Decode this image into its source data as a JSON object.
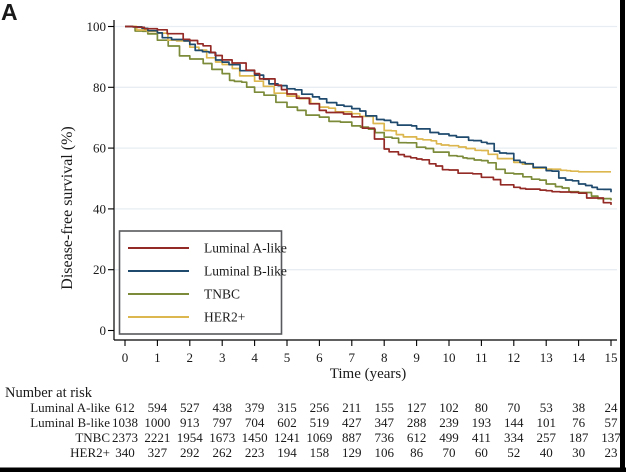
{
  "panel_label": "A",
  "chart_data": {
    "type": "line",
    "subtype": "kaplan-meier-step",
    "xlabel": "Time (years)",
    "ylabel": "Disease-free survival (%)",
    "x_ticks": [
      0,
      1,
      2,
      3,
      4,
      5,
      6,
      7,
      8,
      9,
      10,
      11,
      12,
      13,
      14,
      15
    ],
    "y_ticks": [
      0,
      20,
      40,
      60,
      80,
      100
    ],
    "xlim": [
      0,
      15
    ],
    "ylim": [
      0,
      100
    ],
    "grid": "horizontal",
    "legend_position": "inside-bottom-left",
    "series": [
      {
        "name": "Luminal A-like",
        "color": "#942a25",
        "x": [
          0,
          1,
          2,
          3,
          4,
          5,
          6,
          7,
          8,
          9,
          10,
          11,
          12,
          13,
          14,
          15
        ],
        "values": [
          100,
          98.9,
          95.4,
          89.0,
          84.5,
          77.8,
          72.4,
          70.3,
          59.7,
          56.4,
          52.8,
          50.4,
          47.1,
          46.0,
          45.2,
          41.3
        ]
      },
      {
        "name": "Luminal B-like",
        "color": "#1f4a6d",
        "x": [
          0,
          1,
          2,
          3,
          4,
          5,
          6,
          7,
          8,
          9,
          10,
          11,
          12,
          13,
          14,
          15
        ],
        "values": [
          100,
          97.9,
          94.1,
          88.3,
          84.0,
          79.5,
          76.2,
          73.0,
          69.1,
          66.3,
          64.1,
          61.9,
          56.0,
          52.6,
          48.2,
          45.5
        ]
      },
      {
        "name": "TNBC",
        "color": "#7b8b39",
        "x": [
          0,
          1,
          2,
          3,
          4,
          5,
          6,
          7,
          8,
          9,
          10,
          11,
          12,
          13,
          14,
          15
        ],
        "values": [
          100,
          95.5,
          89.3,
          84.5,
          78.4,
          73.5,
          70.2,
          67.3,
          63.6,
          60.3,
          57.5,
          55.9,
          51.5,
          48.2,
          45.4,
          42.8
        ]
      },
      {
        "name": "HER2+",
        "color": "#dcb64e",
        "x": [
          0,
          1,
          2,
          3,
          4,
          5,
          6,
          7,
          8,
          9,
          10,
          11,
          12,
          13,
          14,
          15
        ],
        "values": [
          100,
          97.8,
          93.2,
          87.5,
          82.0,
          77.1,
          73.5,
          71.3,
          65.8,
          63.0,
          60.8,
          59.2,
          55.3,
          53.1,
          52.2,
          52.2
        ]
      }
    ]
  },
  "risk_table": {
    "title": "Number at risk",
    "time_points": [
      0,
      1,
      2,
      3,
      4,
      5,
      6,
      7,
      8,
      9,
      10,
      11,
      12,
      13,
      14,
      15
    ],
    "rows": [
      {
        "label": "Luminal A-like",
        "counts": [
          612,
          594,
          527,
          438,
          379,
          315,
          256,
          211,
          155,
          127,
          102,
          80,
          70,
          53,
          38,
          24
        ]
      },
      {
        "label": "Luminal B-like",
        "counts": [
          1038,
          1000,
          913,
          797,
          704,
          602,
          519,
          427,
          347,
          288,
          239,
          193,
          144,
          101,
          76,
          57
        ]
      },
      {
        "label": "TNBC",
        "counts": [
          2373,
          2221,
          1954,
          1673,
          1450,
          1241,
          1069,
          887,
          736,
          612,
          499,
          411,
          334,
          257,
          187,
          137
        ]
      },
      {
        "label": "HER2+",
        "counts": [
          340,
          327,
          292,
          262,
          223,
          194,
          158,
          129,
          106,
          86,
          70,
          60,
          52,
          40,
          30,
          23
        ]
      }
    ]
  },
  "colors": {
    "grid": "#e7edf2",
    "axis": "#000000",
    "legend_border": "#57595c",
    "frame_border": "#000000",
    "text": "#1a1a1a"
  }
}
